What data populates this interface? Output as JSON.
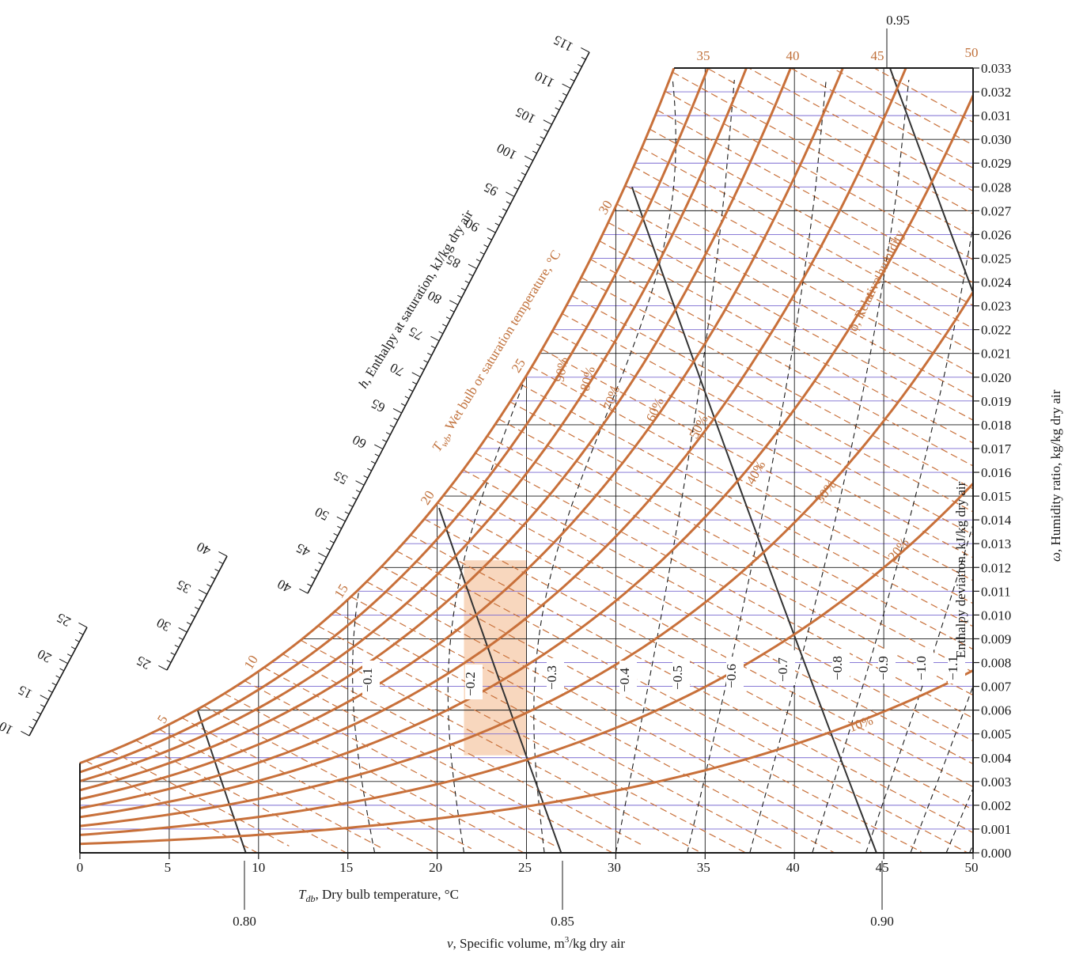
{
  "chart_data": {
    "type": "psychrometric",
    "x_axis": {
      "label": "T_db, Dry bulb temperature, °C",
      "label_symbol": "T",
      "label_sub": "db",
      "label_rest": ", Dry bulb temperature, °C",
      "range": [
        0,
        50
      ],
      "ticks": [
        "0",
        "5",
        "10",
        "15",
        "20",
        "25",
        "30",
        "35",
        "40",
        "45",
        "50"
      ]
    },
    "y_axis": {
      "label": "ω, Humidity ratio, kg/kg dry air",
      "label_symbol": "ω",
      "label_rest": ", Humidity ratio, kg/kg dry air",
      "range": [
        0.0,
        0.033
      ],
      "ticks": [
        "0.000",
        "0.001",
        "0.002",
        "0.003",
        "0.004",
        "0.005",
        "0.006",
        "0.007",
        "0.008",
        "0.009",
        "0.010",
        "0.011",
        "0.012",
        "0.013",
        "0.014",
        "0.015",
        "0.016",
        "0.017",
        "0.018",
        "0.019",
        "0.020",
        "0.021",
        "0.022",
        "0.023",
        "0.024",
        "0.025",
        "0.026",
        "0.027",
        "0.028",
        "0.029",
        "0.030",
        "0.031",
        "0.032",
        "0.033"
      ]
    },
    "relative_humidity": {
      "label": "ϕ, Relative humidity",
      "curves": [
        {
          "rh": 0.1,
          "label": "10%"
        },
        {
          "rh": 0.2,
          "label": "20%"
        },
        {
          "rh": 0.3,
          "label": "30%"
        },
        {
          "rh": 0.4,
          "label": "40%"
        },
        {
          "rh": 0.5,
          "label": "50%"
        },
        {
          "rh": 0.6,
          "label": "60%"
        },
        {
          "rh": 0.7,
          "label": "70%"
        },
        {
          "rh": 0.8,
          "label": "80%"
        },
        {
          "rh": 0.9,
          "label": "90%"
        },
        {
          "rh": 1.0,
          "label": ""
        }
      ]
    },
    "wet_bulb": {
      "label": "T_wb, Wet bulb or saturation temperature, °C",
      "label_symbol": "T",
      "label_sub": "wb",
      "label_rest": ", Wet bulb or saturation temperature, °C",
      "labels": [
        "5",
        "10",
        "15",
        "20",
        "25",
        "30",
        "35",
        "40",
        "45",
        "50"
      ]
    },
    "enthalpy_scale": {
      "label": "h, Enthalpy at saturation, kJ/kg dry air",
      "label_symbol": "h",
      "label_rest": ", Enthalpy at saturation, kJ/kg dry air",
      "seg1": [
        "10",
        "15",
        "20",
        "25"
      ],
      "seg2": [
        "25",
        "30",
        "35",
        "40"
      ],
      "seg3": [
        "40",
        "45",
        "50",
        "55",
        "60",
        "65",
        "70",
        "75",
        "80",
        "85",
        "90",
        "95",
        "100",
        "105",
        "110",
        "115"
      ]
    },
    "specific_volume": {
      "label": "v, Specific volume, m³/kg dry air",
      "label_symbol": "v",
      "label_rest": ", Specific volume, m",
      "label_sup": "3",
      "label_tail": "/kg dry air",
      "lines": [
        {
          "v": 0.8,
          "label": "0.80"
        },
        {
          "v": 0.85,
          "label": "0.85"
        },
        {
          "v": 0.9,
          "label": "0.90"
        },
        {
          "v": 0.95,
          "label": "0.95"
        }
      ]
    },
    "enthalpy_deviation": {
      "label": "Enthalpy deviation, kJ/kg dry air",
      "values": [
        "−0.1",
        "−0.2",
        "−0.3",
        "−0.4",
        "−0.5",
        "−0.6",
        "−0.7",
        "−0.8",
        "−0.9",
        "−1.0",
        "−1.1"
      ]
    },
    "colors": {
      "orange": "#c8703a",
      "grid": "#1a1a1a",
      "purple_grid": "#7a6ad0",
      "highlight": "#f6c9a8"
    }
  }
}
